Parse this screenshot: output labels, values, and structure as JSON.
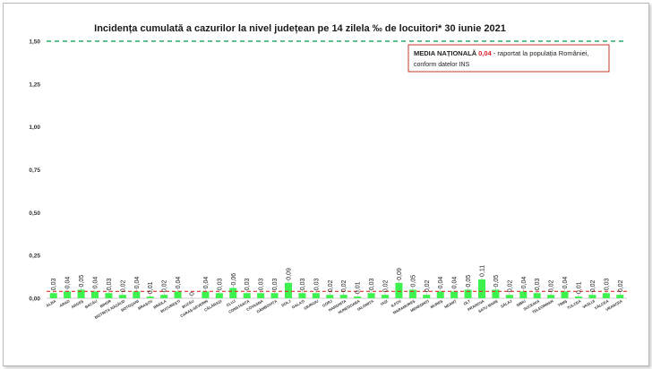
{
  "chart_data": {
    "type": "bar",
    "title": "Incidența cumulată a cazurilor la nivel județean pe 14 zilela ‰ de locuitori* 30 iunie 2021",
    "national_label_bold": "MEDIA NAȚIONALĂ",
    "national_value_text": "0,04",
    "national_label_rest": " - raportat la populația României,",
    "national_label_line2": "conform datelor INS",
    "national_value": 0.04,
    "threshold_value": 1.5,
    "ylim": [
      0,
      1.5
    ],
    "yticks": [
      "0,00",
      "0,25",
      "0,50",
      "0,75",
      "1,00",
      "1,25",
      "1,50"
    ],
    "categories": [
      "ALBA",
      "ARAD",
      "ARGEȘ",
      "BACĂU",
      "BIHOR",
      "BISTRIȚA NĂSĂUD",
      "BOTOȘANI",
      "BRAȘOV",
      "BRĂILA",
      "BUCUREȘTI",
      "BUZĂU",
      "CARAȘ-SEVERIN",
      "CĂLĂRAȘI",
      "CLUJ",
      "CONSTANȚA",
      "COVASNA",
      "DÂMBOVIȚA",
      "DOLJ",
      "GALAȚI",
      "GIURGIU",
      "GORJ",
      "HARGHITA",
      "HUNEDOARA",
      "IALOMIȚA",
      "IAȘI",
      "ILFOV",
      "MARAMUREȘ",
      "MEHEDINȚI",
      "MUREȘ",
      "NEAMȚ",
      "OLT",
      "PRAHOVA",
      "SATU MARE",
      "SĂLAJ",
      "SIBIU",
      "SUCEAVA",
      "TELEORMAN",
      "TIMIȘ",
      "TULCEA",
      "VASLUI",
      "VÂLCEA",
      "VRANCEA"
    ],
    "values": [
      0.03,
      0.04,
      0.05,
      0.04,
      0.03,
      0.02,
      0.04,
      0.01,
      0.02,
      0.04,
      0,
      0.04,
      0.03,
      0.06,
      0.03,
      0.03,
      0.03,
      0.09,
      0.03,
      0.03,
      0.02,
      0.02,
      0.01,
      0.03,
      0.02,
      0.09,
      0.05,
      0.02,
      0.04,
      0.04,
      0.05,
      0.11,
      0.05,
      0.02,
      0.04,
      0.03,
      0.02,
      0.04,
      0.01,
      0.02,
      0.03,
      0.02
    ],
    "value_labels": [
      "0,03",
      "0,04",
      "0,05",
      "0,04",
      "0,03",
      "0,02",
      "0,04",
      "0,01",
      "0,02",
      "0,04",
      "0",
      "0,04",
      "0,03",
      "0,06",
      "0,03",
      "0,03",
      "0,03",
      "0,09",
      "0,03",
      "0,03",
      "0,02",
      "0,02",
      "0,01",
      "0,03",
      "0,02",
      "0,09",
      "0,05",
      "0,02",
      "0,04",
      "0,04",
      "0,05",
      "0,11",
      "0,05",
      "0,02",
      "0,04",
      "0,03",
      "0,02",
      "0,04",
      "0,01",
      "0,02",
      "0,03",
      "0,02"
    ],
    "colors": {
      "bar": "#3df24e",
      "national_line": "#e03030",
      "threshold_line": "#2aa56a",
      "box_border": "#c0392b",
      "national_value": "#e0212b"
    }
  }
}
